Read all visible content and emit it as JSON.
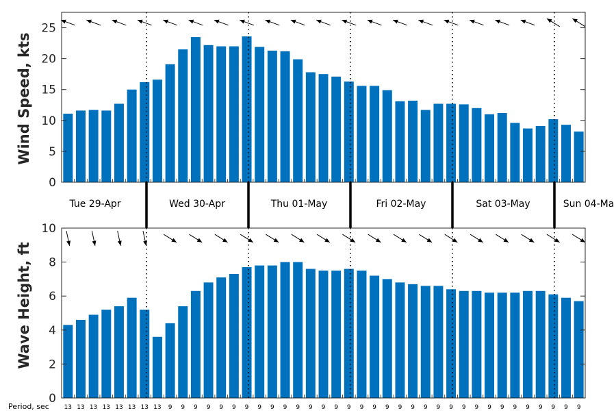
{
  "colors": {
    "bar": "#0072BD",
    "axis": "#262626",
    "arrow": "#000000"
  },
  "days": [
    "Tue 29-Apr",
    "Wed 30-Apr",
    "Thu 01-May",
    "Fri 02-May",
    "Sat 03-May",
    "Sun 04-Ma"
  ],
  "period_label": "Period, sec",
  "chart_data": [
    {
      "type": "bar",
      "ylabel": "Wind Speed, kts",
      "ylim": [
        0,
        27.5
      ],
      "yticks": [
        0,
        5,
        10,
        15,
        20,
        25
      ],
      "grid": false,
      "values": [
        11.1,
        11.6,
        11.7,
        11.6,
        12.7,
        15.0,
        16.2,
        16.6,
        19.1,
        21.5,
        23.5,
        22.2,
        22.0,
        22.0,
        23.6,
        21.9,
        21.3,
        21.2,
        19.9,
        17.8,
        17.5,
        17.1,
        16.3,
        15.6,
        15.6,
        14.9,
        13.1,
        13.2,
        11.7,
        12.7,
        12.7,
        12.6,
        12.0,
        11.0,
        11.2,
        9.6,
        8.7,
        9.1,
        10.2,
        9.3,
        8.2
      ],
      "arrows": "direction arrows above bars (wind)"
    },
    {
      "type": "bar",
      "ylabel": "Wave Height, ft",
      "ylim": [
        0,
        10
      ],
      "yticks": [
        0,
        2,
        4,
        6,
        8,
        10
      ],
      "grid": false,
      "values": [
        4.3,
        4.6,
        4.9,
        5.2,
        5.4,
        5.9,
        5.2,
        3.6,
        4.4,
        5.4,
        6.3,
        6.8,
        7.1,
        7.3,
        7.7,
        7.8,
        7.8,
        8.0,
        8.0,
        7.6,
        7.5,
        7.5,
        7.6,
        7.5,
        7.2,
        7.0,
        6.8,
        6.7,
        6.6,
        6.6,
        6.4,
        6.3,
        6.3,
        6.2,
        6.2,
        6.2,
        6.3,
        6.3,
        6.1,
        5.9,
        5.7
      ],
      "periods": [
        "13",
        "13",
        "13",
        "13",
        "13",
        "13",
        "13",
        "13",
        "9",
        "9",
        "9",
        "9",
        "9",
        "9",
        "9",
        "9",
        "9",
        "9",
        "9",
        "9",
        "9",
        "9",
        "9",
        "9",
        "9",
        "9",
        "9",
        "9",
        "9",
        "9",
        "9",
        "9",
        "9",
        "9",
        "9",
        "9",
        "9",
        "9",
        "9",
        "9",
        "9"
      ]
    }
  ]
}
